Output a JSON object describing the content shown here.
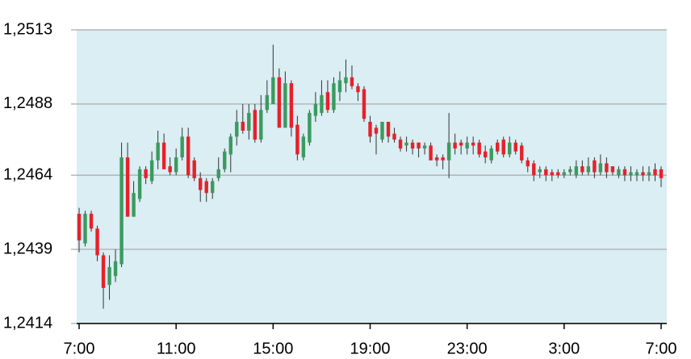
{
  "chart_data": {
    "type": "candlestick",
    "categories": [
      "7:00",
      null,
      null,
      null,
      null,
      null,
      null,
      null,
      null,
      null,
      null,
      null,
      null,
      null,
      null,
      null,
      "11:00",
      null,
      null,
      null,
      null,
      null,
      null,
      null,
      null,
      null,
      null,
      null,
      null,
      null,
      null,
      null,
      "15:00",
      null,
      null,
      null,
      null,
      null,
      null,
      null,
      null,
      null,
      null,
      null,
      null,
      null,
      null,
      null,
      "19:00",
      null,
      null,
      null,
      null,
      null,
      null,
      null,
      null,
      null,
      null,
      null,
      null,
      null,
      null,
      null,
      "23:00",
      null,
      null,
      null,
      null,
      null,
      null,
      null,
      null,
      null,
      null,
      null,
      null,
      null,
      null,
      null,
      "3:00",
      null,
      null,
      null,
      null,
      null,
      null,
      null,
      null,
      null,
      null,
      null,
      null,
      null,
      null,
      null,
      "7:00"
    ],
    "open": [
      1.2451,
      1.2441,
      1.2451,
      1.2446,
      1.2437,
      1.2427,
      1.243,
      1.2434,
      1.247,
      1.245,
      1.2456,
      1.2466,
      1.2462,
      1.2469,
      1.2475,
      1.2467,
      1.2465,
      1.247,
      1.2477,
      1.2469,
      1.2463,
      1.2462,
      1.2458,
      1.2463,
      1.2466,
      1.2471,
      1.2477,
      1.2482,
      1.2479,
      1.2486,
      1.2476,
      1.2486,
      1.2488,
      1.2497,
      1.248,
      1.2495,
      1.2481,
      1.247,
      1.2475,
      1.2484,
      1.2485,
      1.2492,
      1.2486,
      1.2492,
      1.2495,
      1.2497,
      1.2494,
      1.2493,
      1.2482,
      1.248,
      1.2476,
      1.2482,
      1.2478,
      1.2476,
      1.2474,
      1.2475,
      1.2475,
      1.2473,
      1.2474,
      1.247,
      1.247,
      1.2469,
      1.2475,
      1.2475,
      1.2473,
      1.2475,
      1.2475,
      1.2472,
      1.2469,
      1.2475,
      1.2476,
      1.2471,
      1.2475,
      1.2474,
      1.2469,
      1.2468,
      1.2465,
      1.2466,
      1.2465,
      1.2465,
      1.2464,
      1.2465,
      1.2464,
      1.2467,
      1.2465,
      1.2469,
      1.2465,
      1.2468,
      1.2467,
      1.2464,
      1.2466,
      1.2464,
      1.2464,
      1.2465,
      1.2464,
      1.2466,
      1.2466
    ],
    "high": [
      1.2453,
      1.2452,
      1.2452,
      1.2447,
      1.2438,
      1.2437,
      1.2439,
      1.2475,
      1.2475,
      1.2462,
      1.2467,
      1.2467,
      1.2472,
      1.2479,
      1.2478,
      1.247,
      1.2473,
      1.248,
      1.248,
      1.247,
      1.2465,
      1.2463,
      1.2463,
      1.247,
      1.2473,
      1.2478,
      1.2486,
      1.2488,
      1.2488,
      1.2488,
      1.2491,
      1.2496,
      1.2508,
      1.25,
      1.2499,
      1.2496,
      1.2484,
      1.2478,
      1.2486,
      1.2492,
      1.2496,
      1.2496,
      1.2497,
      1.2499,
      1.2503,
      1.2501,
      1.2495,
      1.2494,
      1.2484,
      1.2481,
      1.2482,
      1.2482,
      1.248,
      1.2477,
      1.2477,
      1.2476,
      1.2475,
      1.2475,
      1.2475,
      1.2471,
      1.2471,
      1.2485,
      1.2478,
      1.2476,
      1.2477,
      1.2477,
      1.2476,
      1.2474,
      1.2474,
      1.2476,
      1.2477,
      1.2477,
      1.2476,
      1.2475,
      1.247,
      1.2469,
      1.2467,
      1.2467,
      1.2466,
      1.2466,
      1.2466,
      1.2467,
      1.2469,
      1.2469,
      1.247,
      1.247,
      1.2471,
      1.247,
      1.2467,
      1.2467,
      1.2467,
      1.2467,
      1.2466,
      1.2467,
      1.2467,
      1.2468,
      1.2467
    ],
    "low": [
      1.2438,
      1.244,
      1.2445,
      1.2435,
      1.2419,
      1.2422,
      1.2428,
      1.2433,
      1.245,
      1.245,
      1.2455,
      1.2461,
      1.2461,
      1.2466,
      1.2466,
      1.2464,
      1.2464,
      1.2469,
      1.2463,
      1.2462,
      1.2455,
      1.2455,
      1.2456,
      1.2462,
      1.2465,
      1.2465,
      1.2474,
      1.2478,
      1.2476,
      1.2475,
      1.2475,
      1.2485,
      1.2488,
      1.248,
      1.248,
      1.2477,
      1.2469,
      1.2469,
      1.2474,
      1.2482,
      1.2484,
      1.2485,
      1.2485,
      1.2489,
      1.2492,
      1.2493,
      1.2489,
      1.2482,
      1.2475,
      1.2471,
      1.2475,
      1.2475,
      1.2475,
      1.2472,
      1.2472,
      1.2471,
      1.247,
      1.2471,
      1.2469,
      1.2467,
      1.2466,
      1.2463,
      1.2471,
      1.2471,
      1.2471,
      1.2471,
      1.247,
      1.2468,
      1.2468,
      1.2471,
      1.247,
      1.247,
      1.2471,
      1.2468,
      1.2465,
      1.2462,
      1.2463,
      1.2462,
      1.2462,
      1.2463,
      1.2463,
      1.2464,
      1.2463,
      1.2464,
      1.2464,
      1.2463,
      1.2464,
      1.2463,
      1.2464,
      1.2463,
      1.2462,
      1.2462,
      1.2462,
      1.2462,
      1.2462,
      1.2462,
      1.246
    ],
    "close": [
      1.2442,
      1.2451,
      1.2446,
      1.2437,
      1.2426,
      1.2433,
      1.2435,
      1.247,
      1.245,
      1.2458,
      1.2466,
      1.2463,
      1.2469,
      1.2475,
      1.2466,
      1.2465,
      1.247,
      1.2477,
      1.2464,
      1.2463,
      1.2459,
      1.2458,
      1.2462,
      1.2466,
      1.2472,
      1.2477,
      1.2482,
      1.2479,
      1.2485,
      1.2476,
      1.2486,
      1.2491,
      1.2497,
      1.248,
      1.2495,
      1.248,
      1.2471,
      1.2477,
      1.2485,
      1.2488,
      1.2491,
      1.2486,
      1.2495,
      1.2496,
      1.2497,
      1.2494,
      1.2492,
      1.2483,
      1.2477,
      1.2478,
      1.2482,
      1.2477,
      1.2476,
      1.2473,
      1.2475,
      1.2473,
      1.2473,
      1.2474,
      1.2469,
      1.2469,
      1.2469,
      1.2475,
      1.2473,
      1.2474,
      1.2475,
      1.2474,
      1.2471,
      1.247,
      1.2473,
      1.2472,
      1.2471,
      1.2475,
      1.2472,
      1.2469,
      1.2467,
      1.2464,
      1.2466,
      1.2464,
      1.2464,
      1.2464,
      1.2465,
      1.2466,
      1.2467,
      1.2465,
      1.2467,
      1.2465,
      1.2468,
      1.2465,
      1.2465,
      1.2466,
      1.2464,
      1.2465,
      1.2465,
      1.2464,
      1.2465,
      1.2464,
      1.2463
    ],
    "up_color": "#3c9a5f",
    "down_color": "#e8202a",
    "wick_color": "#333333",
    "ylim": [
      1.2414,
      1.2513
    ],
    "yticks": [
      {
        "value": 1.2414,
        "label": "1,2414"
      },
      {
        "value": 1.2439,
        "label": "1,2439"
      },
      {
        "value": 1.2464,
        "label": "1,2464"
      },
      {
        "value": 1.2488,
        "label": "1,2488"
      },
      {
        "value": 1.2513,
        "label": "1,2513"
      }
    ],
    "grid": true,
    "background": "#daeef3"
  }
}
